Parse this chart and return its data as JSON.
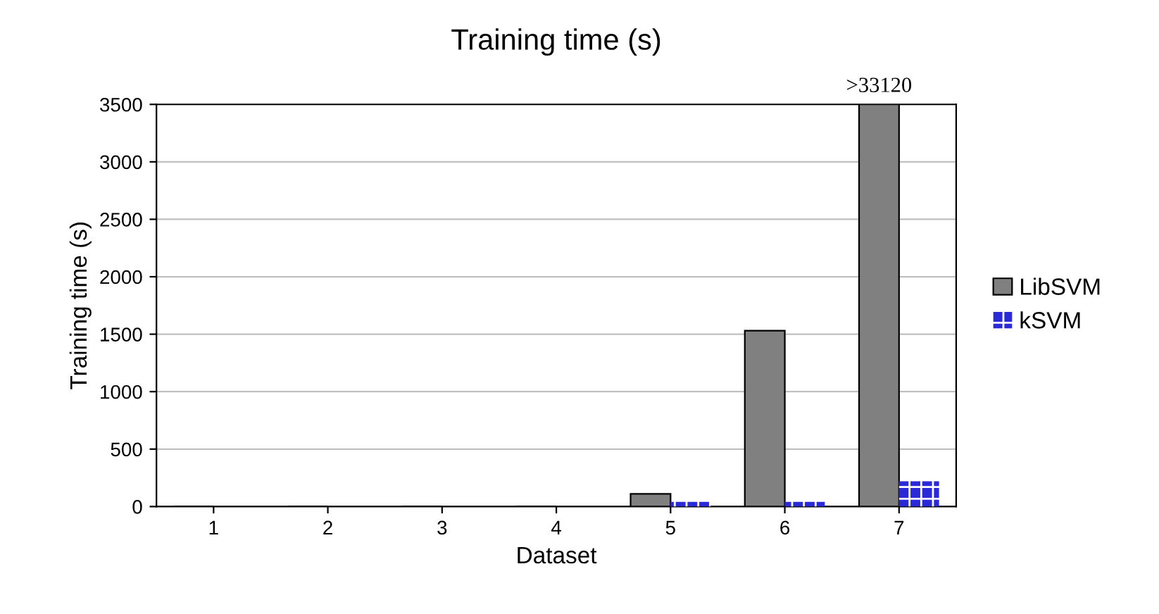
{
  "chart_data": {
    "type": "bar",
    "title": "Training time (s)",
    "xlabel": "Dataset",
    "ylabel": "Training time (s)",
    "categories": [
      "1",
      "2",
      "3",
      "4",
      "5",
      "6",
      "7"
    ],
    "series": [
      {
        "name": "LibSVM",
        "color": "#808080",
        "values": [
          0,
          0,
          0,
          0,
          110,
          1530,
          3500
        ],
        "value_labels": [
          null,
          null,
          null,
          null,
          null,
          null,
          ">33120"
        ]
      },
      {
        "name": "kSVM",
        "color": "#2a2ad8",
        "values": [
          0,
          0,
          0,
          0,
          40,
          40,
          220
        ]
      }
    ],
    "ylim": [
      0,
      3500
    ],
    "yticks": [
      0,
      500,
      1000,
      1500,
      2000,
      2500,
      3000,
      3500
    ],
    "grid": "y",
    "legend": "right"
  }
}
